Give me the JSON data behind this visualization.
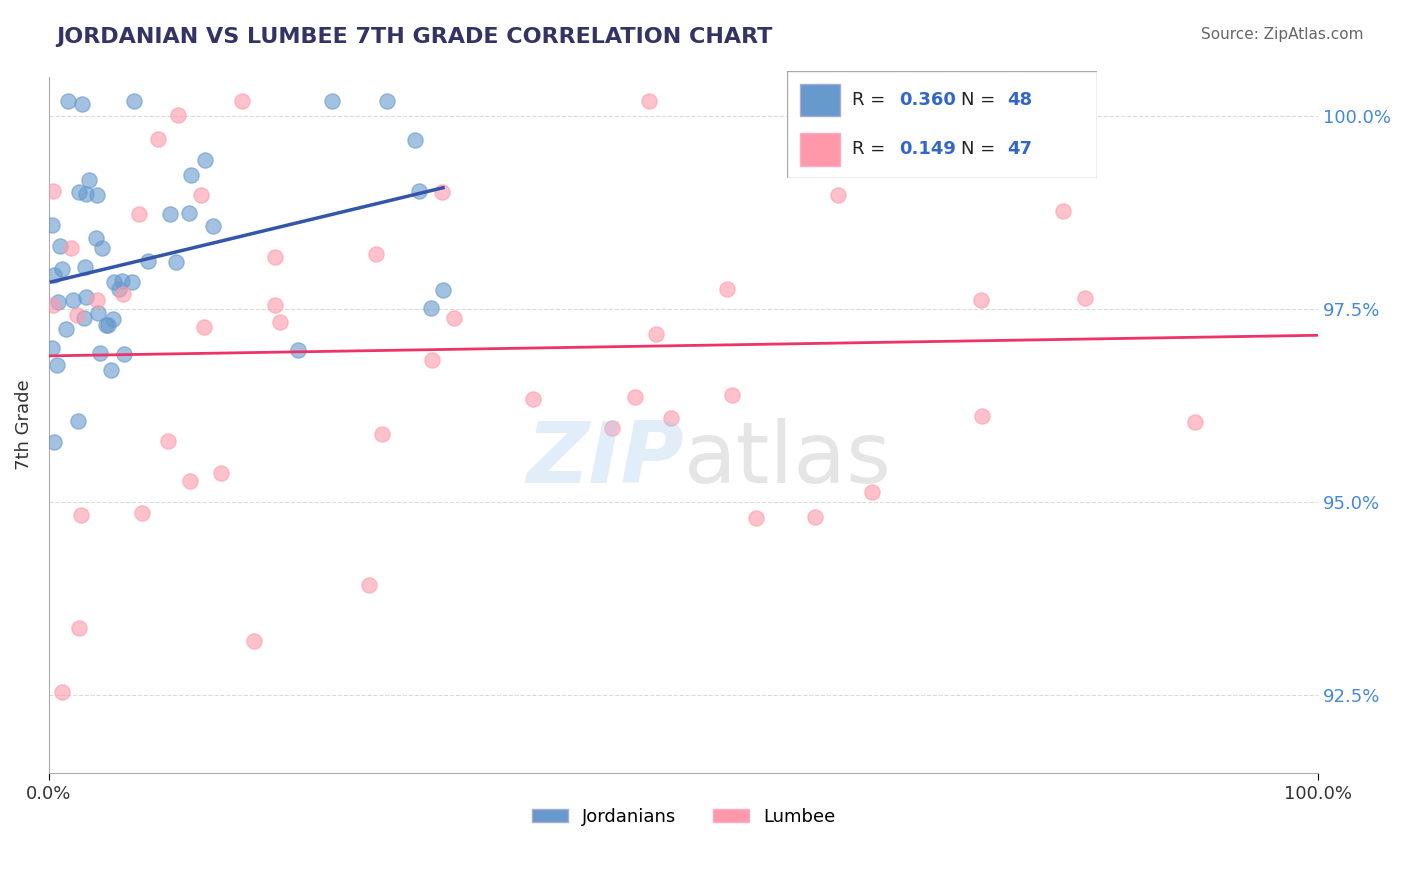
{
  "title": "JORDANIAN VS LUMBEE 7TH GRADE CORRELATION CHART",
  "source": "Source: ZipAtlas.com",
  "ylabel": "7th Grade",
  "xlim": [
    0.0,
    1.0
  ],
  "ylim": [
    0.915,
    1.005
  ],
  "yticks": [
    0.925,
    0.95,
    0.975,
    1.0
  ],
  "ytick_labels": [
    "92.5%",
    "95.0%",
    "97.5%",
    "100.0%"
  ],
  "r_jordanian": 0.36,
  "n_jordanian": 48,
  "r_lumbee": 0.149,
  "n_lumbee": 47,
  "blue_color": "#6699CC",
  "pink_color": "#FF99AA",
  "blue_line_color": "#3355AA",
  "pink_line_color": "#EE3366",
  "title_color": "#333366"
}
